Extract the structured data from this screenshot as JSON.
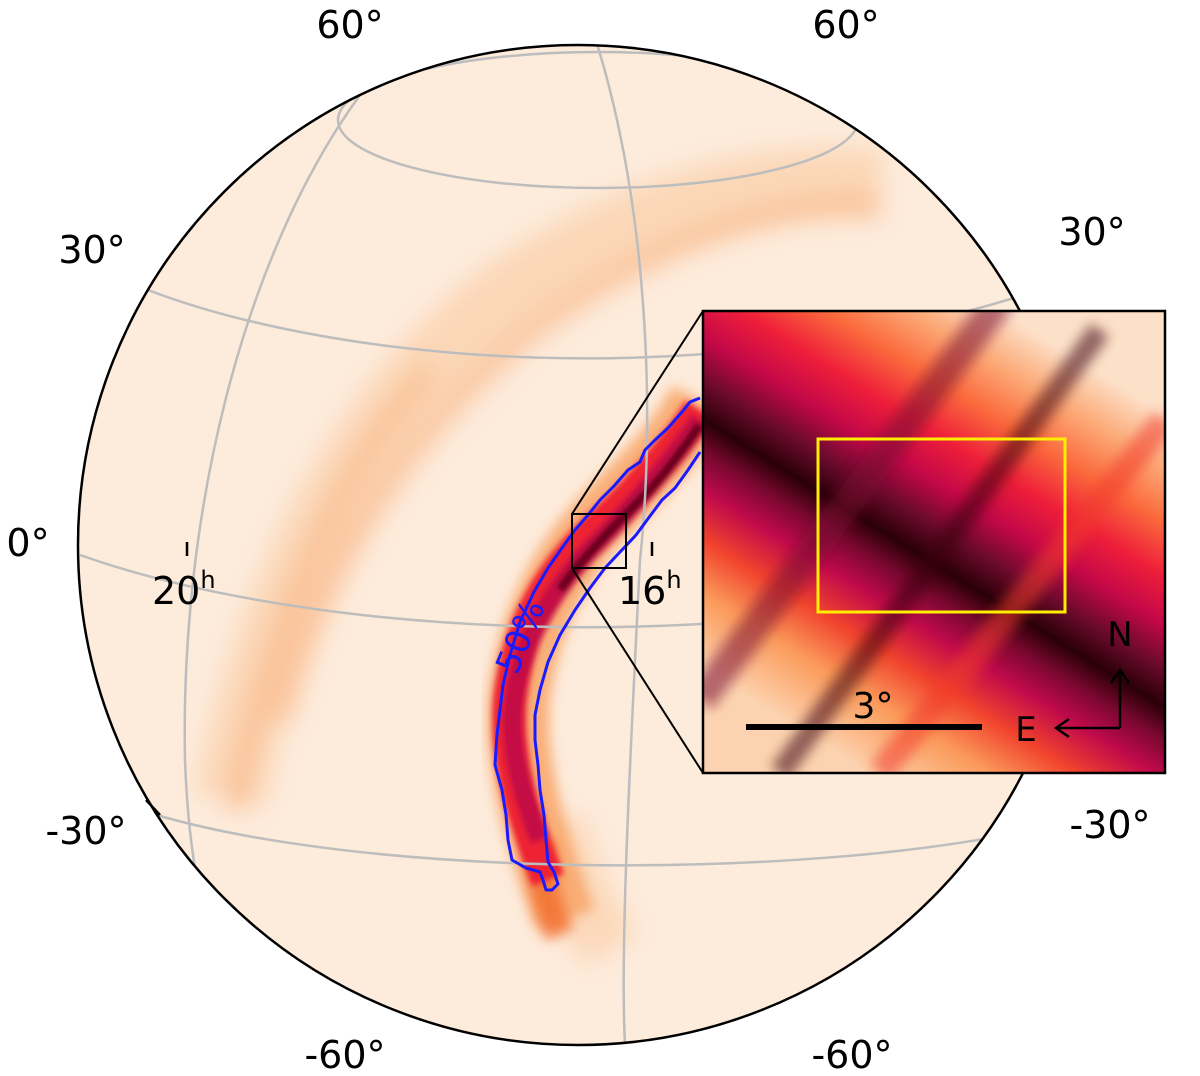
{
  "map": {
    "projection": "orthographic globe",
    "colormap": "sequential light-cream to orange to red to black",
    "grid_color": "#bdbdbd",
    "outline_color": "#000000",
    "contour_color": "#1a1aff",
    "labels": {
      "dec_top_left": "60°",
      "dec_top_right": "60°",
      "dec_30_left": "30°",
      "dec_30_right": "30°",
      "dec_0_left": "0°",
      "dec_minus30_left": "-30°",
      "dec_minus30_right": "-30°",
      "dec_minus60_left": "-60°",
      "dec_minus60_right": "-60°",
      "ra_20": "20",
      "ra_16": "16",
      "ra_unit": "h",
      "contour": "50%"
    }
  },
  "inset": {
    "box_color": "#ffee00",
    "scale_bar": "3°",
    "north": "N",
    "east": "E"
  }
}
